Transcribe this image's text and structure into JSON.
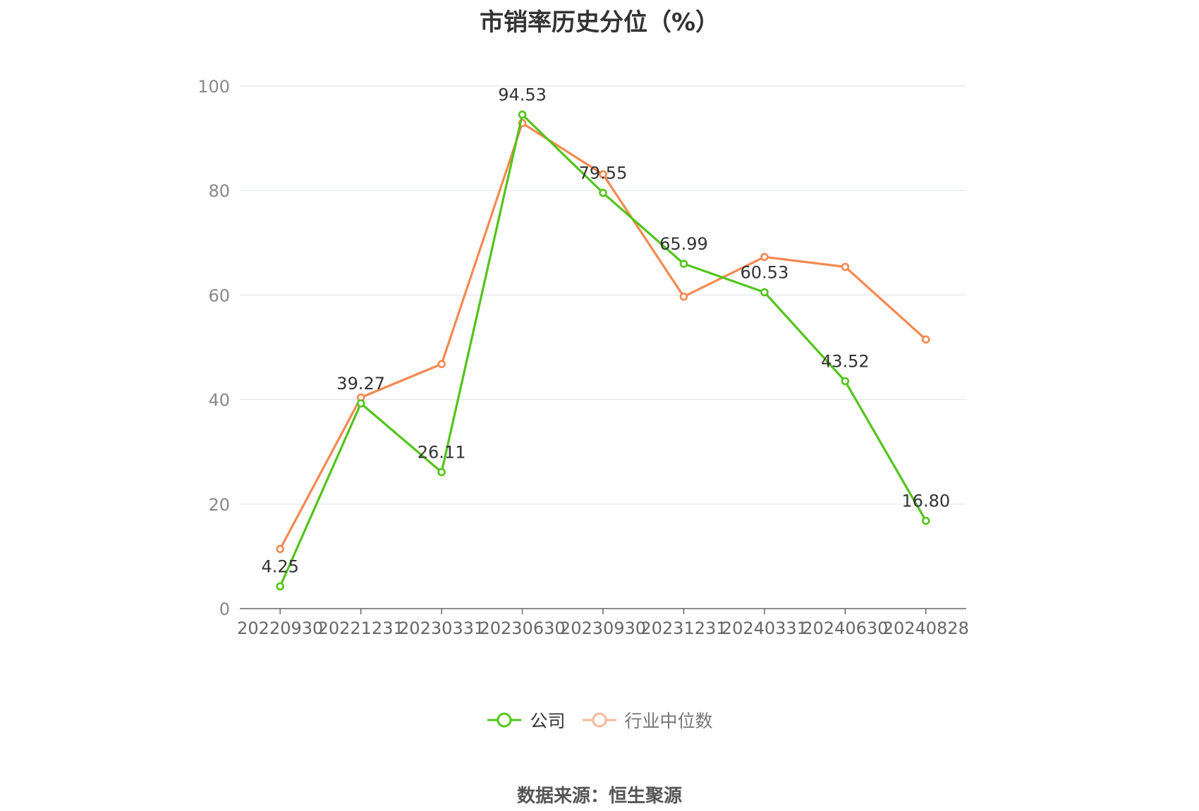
{
  "chart_data": {
    "type": "line",
    "title": "市销率历史分位（%）",
    "categories": [
      "20220930",
      "20221231",
      "20230331",
      "20230630",
      "20230930",
      "20231231",
      "20240331",
      "20240630",
      "20240828"
    ],
    "ylim": [
      0,
      100
    ],
    "yticks": [
      0,
      20,
      40,
      60,
      80,
      100
    ],
    "grid": true,
    "legend_position": "bottom",
    "series": [
      {
        "name": "公司",
        "color": "#52c41a",
        "values": [
          4.25,
          39.27,
          26.11,
          94.53,
          79.55,
          65.99,
          60.53,
          43.52,
          16.8
        ],
        "labels": [
          "4.25",
          "39.27",
          "26.11",
          "94.53",
          "79.55",
          "65.99",
          "60.53",
          "43.52",
          "16.80"
        ]
      },
      {
        "name": "行业中位数",
        "color": "#f5884f",
        "legend_color": "#f7b69a",
        "values": [
          11.4,
          40.4,
          46.8,
          92.9,
          83.1,
          59.7,
          67.3,
          65.4,
          51.5
        ]
      }
    ]
  },
  "source": "数据来源：恒生聚源"
}
